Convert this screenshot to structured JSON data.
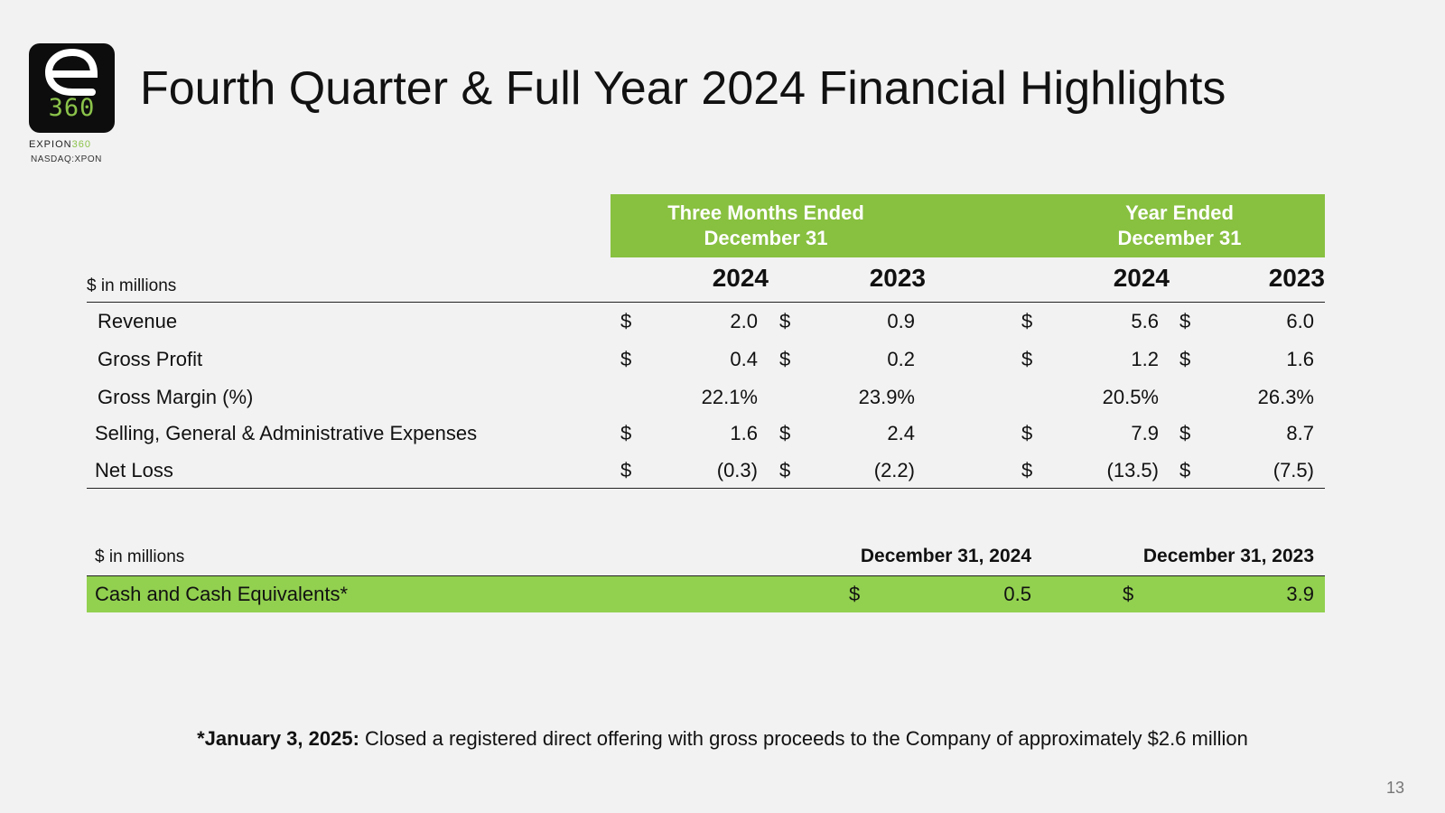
{
  "logo": {
    "number": "360",
    "brand_prefix": "EXPION",
    "brand_suffix": "360",
    "ticker": "NASDAQ:XPON"
  },
  "title": "Fourth Quarter & Full Year 2024 Financial Highlights",
  "table1": {
    "units": "$ in millions",
    "group_headers": [
      "Three Months Ended December 31",
      "Year Ended December 31"
    ],
    "group_header_lines": [
      [
        "Three Months Ended",
        "December 31"
      ],
      [
        "Year Ended",
        "December 31"
      ]
    ],
    "years": [
      "2024",
      "2023",
      "2024",
      "2023"
    ],
    "rows": [
      {
        "label": "Revenue",
        "values": [
          "2.0",
          "0.9",
          "5.6",
          "6.0"
        ],
        "dollar": true
      },
      {
        "label": "Gross Profit",
        "values": [
          "0.4",
          "0.2",
          "1.2",
          "1.6"
        ],
        "dollar": true
      },
      {
        "label": "Gross Margin (%)",
        "values": [
          "22.1%",
          "23.9%",
          "20.5%",
          "26.3%"
        ],
        "dollar": false
      },
      {
        "label": "Selling, General & Administrative Expenses",
        "values": [
          "1.6",
          "2.4",
          "7.9",
          "8.7"
        ],
        "dollar": true
      },
      {
        "label": "Net Loss",
        "values": [
          "(0.3)",
          "(2.2)",
          "(13.5)",
          "(7.5)"
        ],
        "dollar": true
      }
    ],
    "currency_symbol": "$"
  },
  "table2": {
    "units": "$ in millions",
    "headers": [
      "December 31, 2024",
      "December 31, 2023"
    ],
    "row": {
      "label": "Cash and Cash Equivalents*",
      "values": [
        "0.5",
        "3.9"
      ]
    },
    "currency_symbol": "$"
  },
  "footnote": {
    "bold": "*January 3, 2025:",
    "text": " Closed a registered direct offering with gross proceeds to the Company of approximately $2.6 million"
  },
  "page_number": "13",
  "colors": {
    "header_green": "#88c040",
    "row_green": "#92d050",
    "logo_accent": "#8bc34a",
    "logo_bg": "#0d0d0d"
  }
}
